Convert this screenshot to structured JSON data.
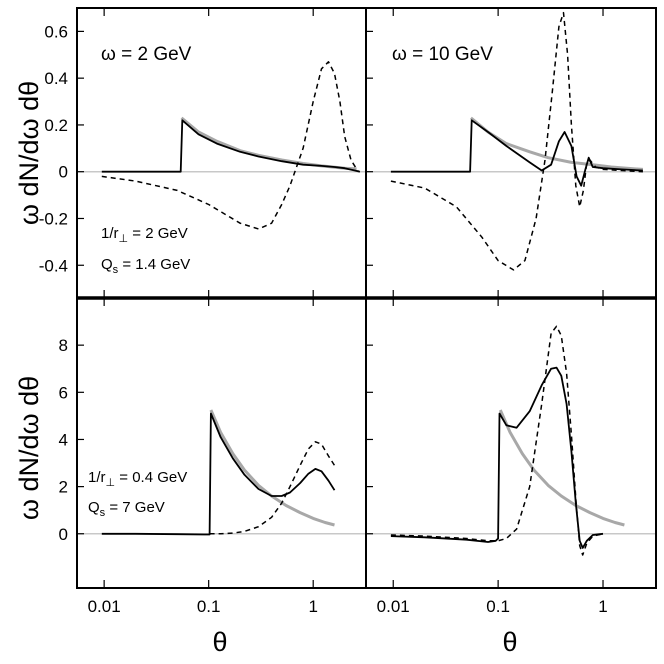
{
  "chart_data": {
    "type": "line",
    "x_scale": "log",
    "xlabel": "θ",
    "ylabel": "ω dN/dω dθ",
    "x_ticks": [
      {
        "value": 0.01,
        "label": "0.01"
      },
      {
        "value": 0.1,
        "label": "0.1"
      },
      {
        "value": 1,
        "label": "1"
      }
    ],
    "xlim": [
      0.0055,
      3.2
    ],
    "rows": [
      {
        "ylim": [
          -0.54,
          0.7
        ],
        "y_ticks": [
          {
            "value": 0.6,
            "label": "0.6"
          },
          {
            "value": 0.4,
            "label": "0.4"
          },
          {
            "value": 0.2,
            "label": "0.2"
          },
          {
            "value": 0,
            "label": "0"
          },
          {
            "value": -0.2,
            "label": "-0.2"
          },
          {
            "value": -0.4,
            "label": "-0.4"
          }
        ],
        "params": {
          "r_prefix": "1/r",
          "r_sub": "⊥",
          "r_value": " = 2 GeV",
          "q_prefix": "Q",
          "q_sub": "s",
          "q_value": " = 1.4 GeV"
        }
      },
      {
        "ylim": [
          -2.3,
          10.0
        ],
        "y_ticks": [
          {
            "value": 8,
            "label": "8"
          },
          {
            "value": 6,
            "label": "6"
          },
          {
            "value": 4,
            "label": "4"
          },
          {
            "value": 2,
            "label": "2"
          },
          {
            "value": 0,
            "label": "0"
          }
        ],
        "params": {
          "r_prefix": "1/r",
          "r_sub": "⊥",
          "r_value": " = 0.4 GeV",
          "q_prefix": "Q",
          "q_sub": "s",
          "q_value": " = 7 GeV"
        }
      }
    ],
    "columns": [
      {
        "label": "ω = 2 GeV"
      },
      {
        "label": "ω = 10 GeV"
      }
    ],
    "panels": [
      {
        "row": 0,
        "col": 0,
        "series": [
          {
            "name": "reference",
            "style": "gray",
            "x": [
              0.055,
              0.08,
              0.12,
              0.2,
              0.3,
              0.5,
              0.8,
              1.2,
              2.0,
              2.6
            ],
            "y": [
              0.23,
              0.17,
              0.13,
              0.09,
              0.07,
              0.05,
              0.035,
              0.025,
              0.015,
              0.012
            ]
          },
          {
            "name": "solid",
            "style": "solid",
            "x": [
              0.0095,
              0.02,
              0.04,
              0.054,
              0.056,
              0.08,
              0.12,
              0.2,
              0.3,
              0.5,
              0.8,
              1.2,
              1.6,
              2.0,
              2.5,
              2.8
            ],
            "y": [
              0.0,
              0.0,
              0.0,
              0.0,
              0.22,
              0.16,
              0.12,
              0.085,
              0.065,
              0.045,
              0.03,
              0.025,
              0.02,
              0.015,
              0.005,
              0.0
            ]
          },
          {
            "name": "dashed",
            "style": "dashed",
            "x": [
              0.0095,
              0.02,
              0.05,
              0.1,
              0.2,
              0.3,
              0.4,
              0.5,
              0.6,
              0.8,
              1.0,
              1.2,
              1.4,
              1.6,
              1.8,
              2.0,
              2.3,
              2.7
            ],
            "y": [
              -0.02,
              -0.04,
              -0.08,
              -0.14,
              -0.22,
              -0.245,
              -0.22,
              -0.14,
              -0.06,
              0.1,
              0.3,
              0.44,
              0.47,
              0.42,
              0.3,
              0.15,
              0.05,
              0.0
            ]
          }
        ]
      },
      {
        "row": 0,
        "col": 1,
        "series": [
          {
            "name": "reference",
            "style": "gray",
            "x": [
              0.055,
              0.08,
              0.12,
              0.2,
              0.3,
              0.5,
              0.8,
              1.2,
              2.0,
              2.4
            ],
            "y": [
              0.23,
              0.17,
              0.12,
              0.085,
              0.06,
              0.04,
              0.03,
              0.02,
              0.012,
              0.01
            ]
          },
          {
            "name": "solid",
            "style": "solid",
            "x": [
              0.0095,
              0.02,
              0.04,
              0.054,
              0.056,
              0.08,
              0.12,
              0.2,
              0.26,
              0.32,
              0.38,
              0.43,
              0.5,
              0.56,
              0.62,
              0.68,
              0.73,
              0.8,
              1.0,
              1.5,
              2.4
            ],
            "y": [
              0.0,
              0.0,
              0.0,
              0.0,
              0.22,
              0.17,
              0.11,
              0.04,
              0.005,
              0.03,
              0.13,
              0.17,
              0.11,
              -0.02,
              -0.06,
              0.01,
              0.06,
              0.02,
              0.015,
              0.01,
              0.005
            ]
          },
          {
            "name": "dashed",
            "style": "dashed",
            "x": [
              0.0095,
              0.02,
              0.04,
              0.07,
              0.1,
              0.14,
              0.18,
              0.23,
              0.28,
              0.33,
              0.38,
              0.42,
              0.46,
              0.5,
              0.55,
              0.6,
              0.65,
              0.7,
              0.75,
              0.85,
              1.0,
              1.5,
              2.4
            ],
            "y": [
              -0.04,
              -0.07,
              -0.15,
              -0.28,
              -0.38,
              -0.42,
              -0.38,
              -0.2,
              0.05,
              0.35,
              0.62,
              0.68,
              0.5,
              0.2,
              -0.06,
              -0.15,
              -0.08,
              0.04,
              0.05,
              0.02,
              0.01,
              0.005,
              0.0
            ]
          }
        ]
      },
      {
        "row": 1,
        "col": 0,
        "series": [
          {
            "name": "reference",
            "style": "gray",
            "x": [
              0.105,
              0.13,
              0.17,
              0.22,
              0.3,
              0.4,
              0.55,
              0.75,
              1.0,
              1.3,
              1.6
            ],
            "y": [
              5.25,
              4.3,
              3.4,
              2.7,
              2.05,
              1.6,
              1.2,
              0.9,
              0.65,
              0.48,
              0.37
            ]
          },
          {
            "name": "solid",
            "style": "solid",
            "x": [
              0.0095,
              0.02,
              0.05,
              0.09,
              0.102,
              0.105,
              0.13,
              0.17,
              0.22,
              0.3,
              0.4,
              0.5,
              0.6,
              0.75,
              0.9,
              1.05,
              1.2,
              1.4,
              1.6
            ],
            "y": [
              0.0,
              0.0,
              -0.02,
              -0.03,
              -0.03,
              5.1,
              4.1,
              3.2,
              2.5,
              1.9,
              1.6,
              1.6,
              1.75,
              2.15,
              2.55,
              2.75,
              2.65,
              2.25,
              1.85
            ]
          },
          {
            "name": "dashed",
            "style": "dashed",
            "x": [
              0.102,
              0.13,
              0.17,
              0.22,
              0.3,
              0.4,
              0.5,
              0.6,
              0.75,
              0.9,
              1.05,
              1.2,
              1.4,
              1.6
            ],
            "y": [
              0.0,
              0.0,
              0.03,
              0.1,
              0.3,
              0.7,
              1.3,
              2.0,
              2.9,
              3.6,
              3.9,
              3.8,
              3.3,
              2.9
            ]
          }
        ]
      },
      {
        "row": 1,
        "col": 1,
        "series": [
          {
            "name": "reference",
            "style": "gray",
            "x": [
              0.105,
              0.13,
              0.17,
              0.22,
              0.3,
              0.4,
              0.55,
              0.75,
              1.0,
              1.3,
              1.6
            ],
            "y": [
              5.25,
              4.3,
              3.4,
              2.7,
              2.05,
              1.6,
              1.2,
              0.9,
              0.65,
              0.48,
              0.37
            ]
          },
          {
            "name": "solid",
            "style": "solid",
            "x": [
              0.0095,
              0.02,
              0.05,
              0.08,
              0.095,
              0.1,
              0.103,
              0.12,
              0.15,
              0.2,
              0.26,
              0.32,
              0.36,
              0.4,
              0.45,
              0.5,
              0.55,
              0.6,
              0.64,
              0.7,
              0.8,
              1.0
            ],
            "y": [
              -0.1,
              -0.15,
              -0.25,
              -0.35,
              -0.3,
              -0.2,
              5.1,
              4.6,
              4.5,
              5.2,
              6.3,
              7.0,
              7.05,
              6.7,
              5.5,
              3.5,
              1.3,
              -0.3,
              -0.6,
              -0.3,
              -0.05,
              0.0
            ]
          },
          {
            "name": "dashed",
            "style": "dashed",
            "x": [
              0.0095,
              0.02,
              0.05,
              0.08,
              0.1,
              0.12,
              0.15,
              0.2,
              0.26,
              0.32,
              0.36,
              0.4,
              0.45,
              0.5,
              0.55,
              0.6,
              0.64,
              0.7,
              0.8,
              1.0
            ],
            "y": [
              -0.05,
              -0.1,
              -0.2,
              -0.3,
              -0.3,
              -0.2,
              0.2,
              2.0,
              5.5,
              8.5,
              8.8,
              8.4,
              6.8,
              4.2,
              1.5,
              -0.5,
              -0.9,
              -0.4,
              -0.1,
              0.0
            ]
          }
        ]
      }
    ]
  }
}
